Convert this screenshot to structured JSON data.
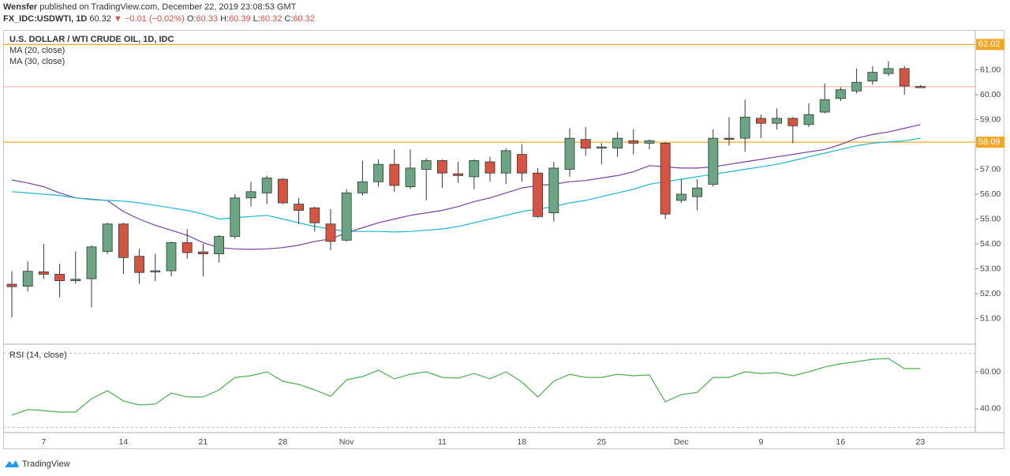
{
  "header": {
    "author": "Wensfer",
    "published": "published on TradingView.com, December 22, 2019 23:08:53 GMT",
    "symbol": "FX_IDC:USDWTI, 1D",
    "last": "60.32",
    "change": "▼ −0.01 (−0.02%)",
    "ohlc": [
      [
        "O:",
        "60.33"
      ],
      [
        "H:",
        "60.39"
      ],
      [
        "L:",
        "60.32"
      ],
      [
        "C:",
        "60.32"
      ]
    ]
  },
  "footer": "TradingView",
  "chart_data": [
    {
      "type": "candlestick",
      "title": "U.S. DOLLAR / WTI CRUDE OIL, 1D, IDC",
      "categories": [
        null,
        null,
        "7",
        null,
        null,
        null,
        null,
        "14",
        null,
        null,
        null,
        null,
        "21",
        null,
        null,
        null,
        null,
        "28",
        null,
        null,
        null,
        "Nov",
        null,
        null,
        null,
        null,
        null,
        "11",
        null,
        null,
        null,
        null,
        "18",
        null,
        null,
        null,
        null,
        "25",
        null,
        null,
        null,
        null,
        "Dec",
        null,
        null,
        null,
        null,
        "9",
        null,
        null,
        null,
        null,
        "16",
        null,
        null,
        null,
        null,
        "23"
      ],
      "open": [
        52.38,
        52.3,
        52.88,
        52.78,
        52.52,
        52.6,
        53.7,
        54.8,
        53.5,
        52.9,
        52.92,
        54.05,
        53.68,
        53.6,
        54.3,
        55.85,
        56.05,
        56.6,
        55.6,
        55.45,
        54.8,
        54.15,
        56.05,
        56.5,
        57.2,
        56.3,
        57.0,
        57.35,
        56.82,
        56.7,
        57.3,
        56.85,
        57.6,
        56.85,
        55.25,
        57.0,
        58.2,
        57.85,
        57.85,
        58.15,
        58.05,
        58.05,
        55.75,
        55.9,
        56.4,
        58.25,
        58.25,
        59.05,
        58.85,
        59.05,
        58.8,
        59.3,
        59.85,
        60.15,
        60.55,
        60.85,
        61.05,
        60.33
      ],
      "high": [
        52.9,
        53.3,
        54.0,
        53.2,
        53.7,
        53.95,
        54.85,
        54.85,
        53.8,
        53.6,
        54.1,
        54.6,
        54.0,
        54.35,
        56.0,
        56.5,
        56.75,
        56.65,
        55.85,
        55.5,
        55.4,
        56.2,
        57.35,
        57.4,
        57.8,
        57.8,
        57.45,
        57.4,
        57.3,
        57.4,
        57.5,
        57.85,
        58.0,
        57.05,
        57.3,
        58.65,
        58.7,
        58.05,
        58.5,
        58.6,
        58.2,
        58.1,
        56.6,
        56.6,
        58.6,
        59.1,
        59.8,
        59.2,
        59.45,
        59.1,
        59.65,
        60.45,
        60.3,
        61.05,
        61.15,
        61.35,
        61.15,
        60.39
      ],
      "low": [
        51.05,
        52.1,
        52.6,
        51.85,
        52.4,
        51.45,
        53.6,
        52.8,
        52.4,
        52.5,
        52.7,
        53.4,
        52.7,
        53.25,
        54.2,
        55.5,
        55.6,
        55.6,
        54.8,
        54.5,
        53.75,
        54.1,
        55.95,
        56.3,
        56.1,
        56.2,
        55.75,
        56.25,
        56.45,
        56.2,
        56.5,
        56.4,
        56.5,
        55.05,
        54.9,
        56.7,
        57.55,
        57.2,
        57.5,
        57.6,
        57.8,
        55.0,
        55.65,
        55.35,
        56.3,
        57.95,
        57.7,
        58.25,
        58.6,
        58.05,
        58.7,
        59.25,
        59.75,
        60.05,
        60.4,
        60.75,
        60.0,
        60.32
      ],
      "close": [
        52.28,
        52.9,
        52.78,
        52.52,
        52.58,
        53.88,
        54.8,
        53.45,
        52.85,
        52.92,
        54.05,
        53.65,
        53.6,
        54.3,
        55.85,
        56.1,
        56.65,
        55.65,
        55.35,
        54.85,
        54.1,
        56.05,
        56.5,
        57.2,
        56.35,
        57.05,
        57.35,
        56.85,
        56.75,
        57.35,
        56.85,
        57.75,
        56.85,
        55.1,
        57.05,
        58.25,
        57.85,
        57.9,
        58.25,
        58.05,
        58.15,
        55.2,
        56.0,
        56.25,
        58.25,
        58.22,
        59.1,
        58.85,
        59.05,
        58.75,
        59.2,
        59.8,
        60.2,
        60.5,
        60.9,
        61.05,
        60.35,
        60.32
      ],
      "up_color": "#6ba583",
      "down_color": "#d75442",
      "wick_color": "#2d3a33",
      "series": [
        {
          "name": "MA (20, close)",
          "color": "#7b3fa0",
          "values": [
            56.57,
            56.45,
            56.3,
            56.05,
            55.85,
            55.8,
            55.75,
            55.3,
            55.0,
            54.75,
            54.55,
            54.35,
            54.05,
            53.85,
            53.8,
            53.78,
            53.8,
            53.85,
            53.95,
            54.1,
            54.2,
            54.45,
            54.65,
            54.85,
            55.0,
            55.15,
            55.25,
            55.35,
            55.5,
            55.7,
            55.85,
            56.05,
            56.25,
            56.35,
            56.4,
            56.5,
            56.55,
            56.65,
            56.75,
            56.9,
            57.15,
            57.1,
            57.05,
            57.05,
            57.1,
            57.2,
            57.3,
            57.4,
            57.5,
            57.6,
            57.7,
            57.8,
            58.0,
            58.25,
            58.4,
            58.5,
            58.65,
            58.8
          ]
        },
        {
          "name": "MA (30, close)",
          "color": "#19b8cf",
          "values": [
            56.1,
            56.05,
            56.0,
            55.95,
            55.85,
            55.78,
            55.75,
            55.72,
            55.65,
            55.55,
            55.45,
            55.35,
            55.2,
            55.0,
            55.05,
            55.1,
            55.15,
            55.0,
            54.85,
            54.7,
            54.6,
            54.5,
            54.5,
            54.5,
            54.48,
            54.5,
            54.55,
            54.6,
            54.7,
            54.85,
            55.0,
            55.15,
            55.3,
            55.4,
            55.5,
            55.65,
            55.75,
            55.9,
            56.05,
            56.2,
            56.4,
            56.5,
            56.6,
            56.7,
            56.8,
            56.9,
            57.0,
            57.1,
            57.2,
            57.35,
            57.5,
            57.65,
            57.8,
            57.95,
            58.05,
            58.1,
            58.15,
            58.25
          ]
        }
      ],
      "ylim": [
        50,
        62.38
      ],
      "yticks": [
        {
          "value": 51,
          "label": "51.00"
        },
        {
          "value": 52,
          "label": "52.00"
        },
        {
          "value": 53,
          "label": "53.00"
        },
        {
          "value": 54,
          "label": "54.00"
        },
        {
          "value": 55,
          "label": "55.00"
        },
        {
          "value": 56,
          "label": "56.00"
        },
        {
          "value": 57,
          "label": "57.00"
        },
        {
          "value": 59,
          "label": "59.00"
        },
        {
          "value": 60,
          "label": "60.00"
        },
        {
          "value": 61,
          "label": "61.00"
        }
      ],
      "hlines": [
        62.02,
        58.09
      ],
      "hline_color": "#f5a623",
      "last_price_color": "#f4a4a4"
    },
    {
      "type": "line",
      "series": [
        {
          "name": "RSI (14, close)",
          "color": "#4caf50",
          "values": [
            36.6,
            39.6,
            39.1,
            38.3,
            38.3,
            45.5,
            49.8,
            44.3,
            42.1,
            42.6,
            48.5,
            46.4,
            46.4,
            50.2,
            57.0,
            57.9,
            60.0,
            54.9,
            53.2,
            50.2,
            46.8,
            55.7,
            57.4,
            60.9,
            56.2,
            58.7,
            60.0,
            57.0,
            56.6,
            59.1,
            56.2,
            60.0,
            54.5,
            46.4,
            54.9,
            58.7,
            57.0,
            57.0,
            58.7,
            57.9,
            58.3,
            43.8,
            47.7,
            48.9,
            57.0,
            57.0,
            60.0,
            59.1,
            59.6,
            57.9,
            60.0,
            62.6,
            64.3,
            65.5,
            66.8,
            67.2,
            61.7,
            61.7
          ]
        }
      ],
      "ylim": [
        27.2,
        74.5
      ],
      "yticks": [
        {
          "value": 40,
          "label": "40.00"
        },
        {
          "value": 60,
          "label": "60.00"
        }
      ],
      "levels": [
        30,
        70
      ]
    }
  ]
}
